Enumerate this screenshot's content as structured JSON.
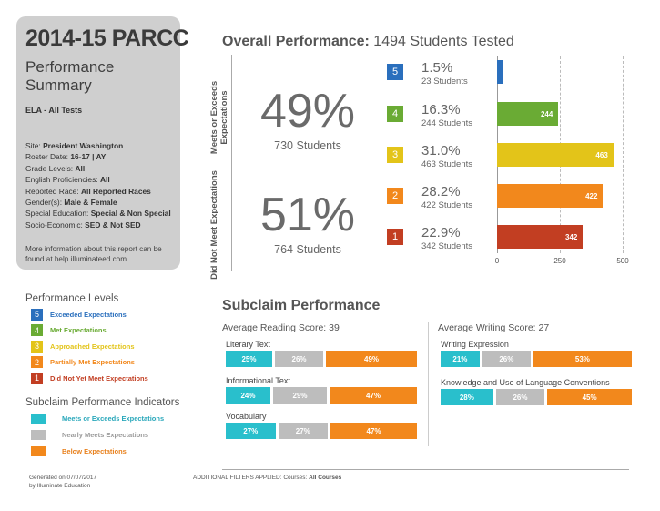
{
  "sidebar": {
    "title": "2014-15 PARCC",
    "subtitle": "Performance Summary",
    "subject": "ELA - All Tests",
    "info": [
      {
        "label": "Site: ",
        "value": "President Washington"
      },
      {
        "label": "Roster Date: ",
        "value": "16-17 | AY"
      },
      {
        "label": "Grade Levels: ",
        "value": "All"
      },
      {
        "label": "English Proficiencies: ",
        "value": "All"
      },
      {
        "label": "Reported Race: ",
        "value": "All Reported Races"
      },
      {
        "label": "Gender(s): ",
        "value": "Male & Female"
      },
      {
        "label": "Special Education: ",
        "value": "Special & Non Special"
      },
      {
        "label": "Socio-Economic: ",
        "value": "SED & Not SED"
      }
    ],
    "more_info": "More information about this report can be found at help.illuminateed.com."
  },
  "legend": {
    "title": "Performance Levels",
    "items": [
      {
        "num": "5",
        "label": "Exceeded Expectations",
        "color": "#2a6fbd"
      },
      {
        "num": "4",
        "label": "Met Expectations",
        "color": "#6aab34"
      },
      {
        "num": "3",
        "label": "Approached Expectations",
        "color": "#e3c419"
      },
      {
        "num": "2",
        "label": "Partially Met Expectations",
        "color": "#f2881c"
      },
      {
        "num": "1",
        "label": "Did Not Yet Meet Expectations",
        "color": "#c23e22"
      }
    ]
  },
  "indicators": {
    "title": "Subclaim Performance Indicators",
    "items": [
      {
        "label": "Meets or Exceeds Expectations",
        "color": "#29bfcc",
        "text_color": "#2aa8bb"
      },
      {
        "label": "Nearly Meets Expectations",
        "color": "#bdbdbd",
        "text_color": "#9a9a9a"
      },
      {
        "label": "Below Expectations",
        "color": "#f2881c",
        "text_color": "#e8801c"
      }
    ]
  },
  "overall": {
    "title_bold": "Overall Performance:",
    "title_rest": " 1494 Students Tested",
    "meets_label": "Meets or Exceeds Expectations",
    "meets_pct": "49%",
    "meets_students": "730 Students",
    "notmeet_label": "Did Not Meet Expectations",
    "notmeet_pct": "51%",
    "notmeet_students": "764 Students",
    "axis_max": 500,
    "ticks": [
      "0",
      "250",
      "500"
    ],
    "levels": [
      {
        "num": "5",
        "pct": "1.5%",
        "students": "23 Students",
        "count": 23,
        "bar_label": "",
        "color": "#2a6fbd"
      },
      {
        "num": "4",
        "pct": "16.3%",
        "students": "244 Students",
        "count": 244,
        "bar_label": "244",
        "color": "#6aab34"
      },
      {
        "num": "3",
        "pct": "31.0%",
        "students": "463 Students",
        "count": 463,
        "bar_label": "463",
        "color": "#e3c419"
      },
      {
        "num": "2",
        "pct": "28.2%",
        "students": "422 Students",
        "count": 422,
        "bar_label": "422",
        "color": "#f2881c"
      },
      {
        "num": "1",
        "pct": "22.9%",
        "students": "342 Students",
        "count": 342,
        "bar_label": "342",
        "color": "#c23e22"
      }
    ]
  },
  "subclaim": {
    "title": "Subclaim Performance",
    "reading": {
      "avg": "Average Reading Score: 39",
      "items": [
        {
          "label": "Literary Text",
          "values": [
            25,
            26,
            49
          ],
          "texts": [
            "25%",
            "26%",
            "49%"
          ]
        },
        {
          "label": "Informational Text",
          "values": [
            24,
            29,
            47
          ],
          "texts": [
            "24%",
            "29%",
            "47%"
          ]
        },
        {
          "label": "Vocabulary",
          "values": [
            27,
            27,
            47
          ],
          "texts": [
            "27%",
            "27%",
            "47%"
          ]
        }
      ]
    },
    "writing": {
      "avg": "Average Writing Score: 27",
      "items": [
        {
          "label": "Writing Expression",
          "values": [
            21,
            26,
            53
          ],
          "texts": [
            "21%",
            "26%",
            "53%"
          ]
        },
        {
          "label": "Knowledge and Use of Language Conventions",
          "values": [
            28,
            26,
            45
          ],
          "texts": [
            "28%",
            "26%",
            "45%"
          ]
        }
      ]
    }
  },
  "footer": {
    "generated": "Generated on 07/07/2017",
    "by": "by Illuminate Education",
    "filters_label": "ADDITIONAL FILTERS APPLIED:  Courses: ",
    "filters_value": "All Courses"
  }
}
